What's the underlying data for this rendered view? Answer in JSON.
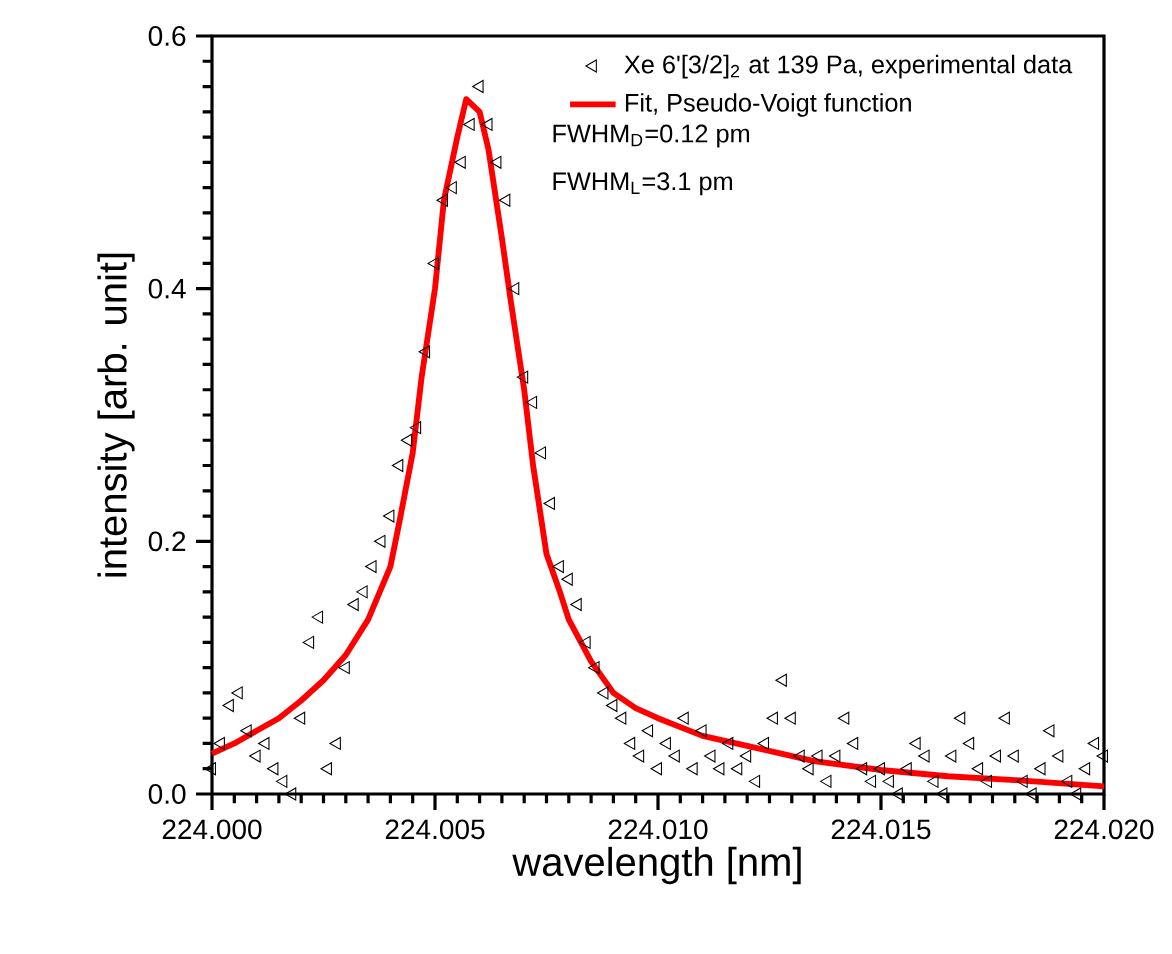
{
  "chart_data": {
    "type": "scatter",
    "xlabel": "wavelength [nm]",
    "ylabel": "intensity [arb. unit]",
    "xlim": [
      224.0,
      224.02
    ],
    "ylim": [
      0,
      0.6
    ],
    "xticks": [
      {
        "value": 224.0,
        "label": "224.000"
      },
      {
        "value": 224.005,
        "label": "224.005"
      },
      {
        "value": 224.01,
        "label": "224.010"
      },
      {
        "value": 224.015,
        "label": "224.015"
      },
      {
        "value": 224.02,
        "label": "224.020"
      }
    ],
    "yticks": [
      {
        "value": 0,
        "label": "0.0"
      },
      {
        "value": 0.2,
        "label": "0.2"
      },
      {
        "value": 0.4,
        "label": "0.4"
      },
      {
        "value": 0.6,
        "label": "0.6"
      }
    ],
    "legend": "top right",
    "grid": false,
    "annotations": [
      "FWHM$_{D}$=0.12 pm",
      "FWHM$_{L}$=3.1 pm"
    ],
    "series": [
      {
        "name": "Xe 6'[3/2]$_{2}$ at 139 Pa, experimental data",
        "marker": "triangle",
        "color": "#000000",
        "x": [
          224.0,
          224.0002,
          224.0004,
          224.0006,
          224.0008,
          224.001,
          224.0012,
          224.0014,
          224.0016,
          224.0018,
          224.002,
          224.0022,
          224.0024,
          224.0026,
          224.0028,
          224.003,
          224.0032,
          224.0034,
          224.0036,
          224.0038,
          224.004,
          224.0042,
          224.0044,
          224.0046,
          224.0048,
          224.005,
          224.0052,
          224.0054,
          224.0056,
          224.0058,
          224.006,
          224.0062,
          224.0064,
          224.0066,
          224.0068,
          224.007,
          224.0072,
          224.0074,
          224.0076,
          224.0078,
          224.008,
          224.0082,
          224.0084,
          224.0086,
          224.0088,
          224.009,
          224.0092,
          224.0094,
          224.0096,
          224.0098,
          224.01,
          224.0102,
          224.0104,
          224.0106,
          224.0108,
          224.011,
          224.0112,
          224.0114,
          224.0116,
          224.0118,
          224.012,
          224.0122,
          224.0124,
          224.0126,
          224.0128,
          224.013,
          224.0132,
          224.0134,
          224.0136,
          224.0138,
          224.014,
          224.0142,
          224.0144,
          224.0146,
          224.0148,
          224.015,
          224.0152,
          224.0154,
          224.0156,
          224.0158,
          224.016,
          224.0162,
          224.0164,
          224.0166,
          224.0168,
          224.017,
          224.0172,
          224.0174,
          224.0176,
          224.0178,
          224.018,
          224.0182,
          224.0184,
          224.0186,
          224.0188,
          224.019,
          224.0192,
          224.0194,
          224.0196,
          224.0198,
          224.02
        ],
        "values": [
          0.02,
          0.04,
          0.07,
          0.08,
          0.05,
          0.03,
          0.04,
          0.02,
          0.01,
          0.0,
          0.06,
          0.12,
          0.14,
          0.02,
          0.04,
          0.1,
          0.15,
          0.16,
          0.18,
          0.2,
          0.22,
          0.26,
          0.28,
          0.29,
          0.35,
          0.42,
          0.47,
          0.48,
          0.5,
          0.53,
          0.56,
          0.53,
          0.5,
          0.47,
          0.4,
          0.33,
          0.31,
          0.27,
          0.23,
          0.18,
          0.17,
          0.15,
          0.12,
          0.1,
          0.08,
          0.07,
          0.06,
          0.04,
          0.03,
          0.05,
          0.02,
          0.04,
          0.03,
          0.06,
          0.02,
          0.05,
          0.03,
          0.02,
          0.04,
          0.02,
          0.03,
          0.01,
          0.04,
          0.06,
          0.09,
          0.06,
          0.03,
          0.02,
          0.03,
          0.01,
          0.03,
          0.06,
          0.04,
          0.02,
          0.01,
          0.02,
          0.01,
          0.0,
          0.02,
          0.04,
          0.03,
          0.01,
          0.0,
          0.03,
          0.06,
          0.04,
          0.02,
          0.01,
          0.03,
          0.06,
          0.03,
          0.01,
          0.0,
          0.02,
          0.05,
          0.03,
          0.01,
          0.0,
          0.02,
          0.04,
          0.03
        ]
      },
      {
        "name": "Fit, Pseudo-Voigt function",
        "type": "line",
        "marker": "none",
        "line_style": "solid",
        "color": "#ff0000",
        "x": [
          224.0,
          224.0005,
          224.001,
          224.0015,
          224.002,
          224.0025,
          224.003,
          224.0035,
          224.004,
          224.0042,
          224.0045,
          224.0047,
          224.005,
          224.0052,
          224.0055,
          224.0057,
          224.006,
          224.0062,
          224.0065,
          224.0067,
          224.007,
          224.0072,
          224.0075,
          224.0078,
          224.008,
          224.0085,
          224.009,
          224.0095,
          224.01,
          224.011,
          224.012,
          224.0135,
          224.015,
          224.0165,
          224.018,
          224.02
        ],
        "values": [
          0.032,
          0.04,
          0.05,
          0.06,
          0.074,
          0.09,
          0.11,
          0.138,
          0.18,
          0.215,
          0.27,
          0.33,
          0.4,
          0.47,
          0.52,
          0.55,
          0.54,
          0.51,
          0.44,
          0.39,
          0.32,
          0.26,
          0.19,
          0.16,
          0.138,
          0.105,
          0.08,
          0.068,
          0.06,
          0.046,
          0.038,
          0.026,
          0.019,
          0.014,
          0.011,
          0.006
        ]
      }
    ]
  }
}
